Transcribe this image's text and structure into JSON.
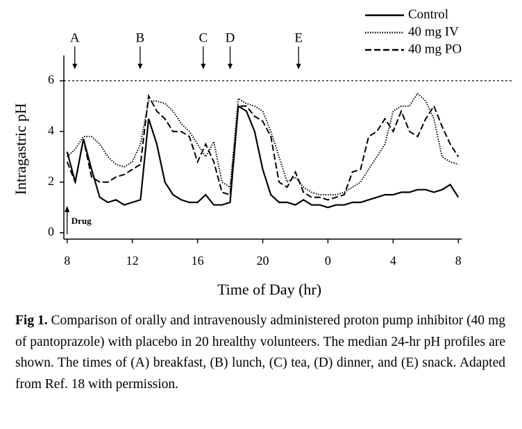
{
  "chart_data": {
    "type": "line",
    "xlabel": "Time of Day (hr)",
    "ylabel": "Intragastric pH",
    "x": [
      8,
      8.5,
      9,
      9.5,
      10,
      10.5,
      11,
      11.5,
      12,
      12.5,
      13,
      13.5,
      14,
      14.5,
      15,
      15.5,
      16,
      16.5,
      17,
      17.5,
      18,
      18.5,
      19,
      19.5,
      20,
      20.5,
      21,
      21.5,
      22,
      22.5,
      23,
      23.5,
      24,
      24.5,
      25,
      25.5,
      26,
      26.5,
      27,
      27.5,
      28,
      28.5,
      29,
      29.5,
      30,
      30.5,
      31,
      31.5,
      32
    ],
    "series": [
      {
        "name": "Control",
        "color": "#000000",
        "dash": "solid",
        "values": [
          3.2,
          2.0,
          3.7,
          2.5,
          1.4,
          1.2,
          1.3,
          1.1,
          1.2,
          1.3,
          4.5,
          3.5,
          2.0,
          1.5,
          1.3,
          1.2,
          1.2,
          1.5,
          1.1,
          1.1,
          1.2,
          5.0,
          4.8,
          4.0,
          2.5,
          1.5,
          1.2,
          1.2,
          1.1,
          1.3,
          1.1,
          1.1,
          1.0,
          1.1,
          1.1,
          1.2,
          1.2,
          1.3,
          1.4,
          1.5,
          1.5,
          1.6,
          1.6,
          1.7,
          1.7,
          1.6,
          1.7,
          1.9,
          1.4
        ]
      },
      {
        "name": "40 mg IV",
        "color": "#000000",
        "dash": "dotted",
        "values": [
          3.0,
          3.3,
          3.8,
          3.8,
          3.5,
          3.0,
          2.7,
          2.6,
          2.8,
          3.5,
          5.2,
          5.2,
          5.1,
          4.8,
          4.3,
          4.0,
          3.5,
          3.0,
          3.6,
          2.0,
          1.8,
          5.3,
          5.1,
          5.0,
          4.8,
          4.0,
          3.0,
          2.0,
          2.2,
          1.8,
          1.6,
          1.5,
          1.5,
          1.5,
          1.6,
          1.8,
          2.0,
          2.5,
          3.0,
          3.5,
          4.8,
          5.0,
          5.0,
          5.5,
          5.2,
          4.5,
          3.0,
          2.8,
          2.7
        ]
      },
      {
        "name": "40 mg PO",
        "color": "#000000",
        "dash": "dashed",
        "values": [
          2.8,
          2.0,
          3.7,
          2.2,
          2.0,
          2.0,
          2.2,
          2.3,
          2.5,
          2.7,
          5.4,
          4.8,
          4.5,
          4.0,
          4.0,
          3.8,
          2.8,
          3.5,
          2.8,
          1.6,
          1.5,
          5.0,
          5.0,
          4.6,
          4.4,
          3.8,
          2.0,
          1.8,
          2.4,
          1.6,
          1.4,
          1.4,
          1.3,
          1.4,
          1.5,
          2.4,
          2.5,
          3.8,
          4.0,
          4.5,
          4.0,
          4.8,
          4.0,
          3.8,
          4.5,
          5.0,
          4.2,
          3.5,
          3.0
        ]
      }
    ],
    "xlim": [
      7.8,
      32.2
    ],
    "xticks": [
      8,
      12,
      16,
      20,
      {
        "value": 24,
        "label": "0"
      },
      {
        "value": 28,
        "label": "4"
      },
      {
        "value": 32,
        "label": "8"
      }
    ],
    "ylim": [
      -0.25,
      7
    ],
    "yticks": [
      0,
      2,
      4,
      6
    ],
    "reference_line": 6,
    "events": [
      {
        "label": "A",
        "x": 8.47
      },
      {
        "label": "B",
        "x": 12.48
      },
      {
        "label": "C",
        "x": 16.35
      },
      {
        "label": "D",
        "x": 18.0
      },
      {
        "label": "E",
        "x": 22.2
      }
    ],
    "dosing": [
      {
        "label": "Drug",
        "x": 8
      }
    ],
    "legend": "top-right"
  },
  "caption": {
    "label": "Fig 1.",
    "text": "Comparison of orally and intravenously administered proton pump inhibitor (40 mg of pantoprazole) with placebo in 20 hrealthy volunteers. The median 24-hr pH profiles are shown. The times of (A) breakfast, (B) lunch, (C) tea, (D) dinner, and (E) snack. Adapted from Ref. 18 with permission."
  }
}
